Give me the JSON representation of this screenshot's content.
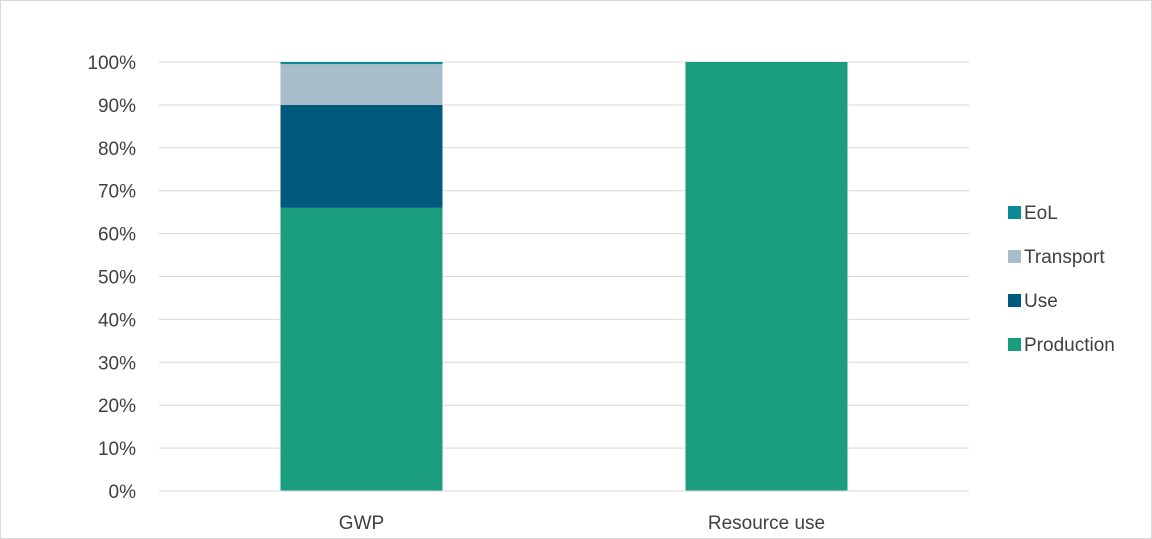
{
  "chart_data": {
    "type": "bar",
    "stacked": true,
    "percent_stacked": true,
    "title": "",
    "xlabel": "",
    "ylabel": "",
    "categories": [
      "GWP",
      "Resource use"
    ],
    "series": [
      {
        "name": "Production",
        "color": "#1a9c7e",
        "values": [
          66,
          100
        ]
      },
      {
        "name": "Use",
        "color": "#005a7d",
        "values": [
          24,
          0
        ]
      },
      {
        "name": "Transport",
        "color": "#a9bcc9",
        "values": [
          9.5,
          0
        ]
      },
      {
        "name": "EoL",
        "color": "#0d8a96",
        "values": [
          0.5,
          0
        ]
      }
    ],
    "ylim": [
      0,
      100
    ],
    "yticks": [
      "0%",
      "10%",
      "20%",
      "30%",
      "40%",
      "50%",
      "60%",
      "70%",
      "80%",
      "90%",
      "100%"
    ],
    "grid": true,
    "legend_position": "right",
    "legend_order": [
      "EoL",
      "Transport",
      "Use",
      "Production"
    ]
  }
}
